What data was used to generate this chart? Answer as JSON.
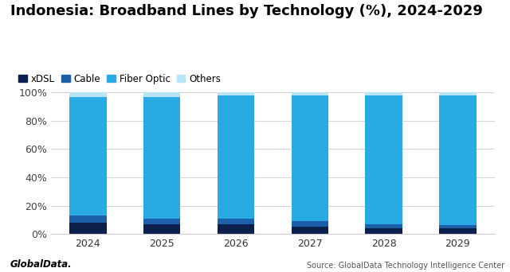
{
  "years": [
    "2024",
    "2025",
    "2026",
    "2027",
    "2028",
    "2029"
  ],
  "series": {
    "xDSL": [
      8.0,
      7.0,
      7.0,
      5.0,
      4.0,
      4.0
    ],
    "Cable": [
      5.0,
      4.0,
      4.0,
      4.0,
      3.0,
      2.0
    ],
    "Fiber Optic": [
      84.0,
      86.0,
      87.0,
      89.0,
      91.0,
      92.0
    ],
    "Others": [
      3.0,
      3.0,
      2.0,
      2.0,
      2.0,
      2.0
    ]
  },
  "colors": {
    "xDSL": "#0d1f4c",
    "Cable": "#1a5fa8",
    "Fiber Optic": "#29aae2",
    "Others": "#b8e4f5"
  },
  "legend_order": [
    "xDSL",
    "Cable",
    "Fiber Optic",
    "Others"
  ],
  "title": "Indonesia: Broadband Lines by Technology (%), 2024-2029",
  "title_fontsize": 13,
  "yticks": [
    0,
    20,
    40,
    60,
    80,
    100
  ],
  "ytick_labels": [
    "0%",
    "20%",
    "40%",
    "60%",
    "80%",
    "100%"
  ],
  "ylim": [
    0,
    100
  ],
  "background_color": "#ffffff",
  "bar_width": 0.5,
  "source_text": "Source: GlobalData Technology Intelligence Center",
  "logo_text": "GlobalData."
}
